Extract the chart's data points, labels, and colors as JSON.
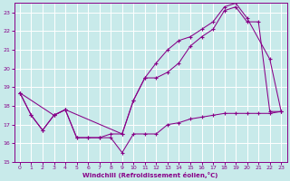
{
  "xlabel": "Windchill (Refroidissement éolien,°C)",
  "bg_color": "#c8eaea",
  "line_color": "#880088",
  "grid_color": "#ffffff",
  "xlim": [
    -0.5,
    23.5
  ],
  "ylim": [
    15,
    23.5
  ],
  "xticks": [
    0,
    1,
    2,
    3,
    4,
    5,
    6,
    7,
    8,
    9,
    10,
    11,
    12,
    13,
    14,
    15,
    16,
    17,
    18,
    19,
    20,
    21,
    22,
    23
  ],
  "yticks": [
    15,
    16,
    17,
    18,
    19,
    20,
    21,
    22,
    23
  ],
  "line1_x": [
    0,
    1,
    2,
    3,
    4,
    9,
    10,
    11,
    12,
    13,
    14,
    15,
    16,
    17,
    18,
    19,
    20,
    21,
    22,
    23
  ],
  "line1_y": [
    18.7,
    17.5,
    16.7,
    17.5,
    17.8,
    16.5,
    18.3,
    19.5,
    19.5,
    19.8,
    20.3,
    21.2,
    21.7,
    22.1,
    23.1,
    23.3,
    22.5,
    22.5,
    17.7,
    17.7
  ],
  "line2_x": [
    0,
    1,
    2,
    3,
    4,
    5,
    6,
    7,
    8,
    9,
    10,
    11,
    12,
    13,
    14,
    15,
    16,
    17,
    18,
    19,
    20,
    21,
    22,
    23
  ],
  "line2_y": [
    18.7,
    17.5,
    16.7,
    17.5,
    17.8,
    16.3,
    16.3,
    16.3,
    16.3,
    15.5,
    16.5,
    16.5,
    16.5,
    17.0,
    17.1,
    17.3,
    17.4,
    17.5,
    17.6,
    17.6,
    17.6,
    17.6,
    17.6,
    17.7
  ],
  "line3_x": [
    0,
    3,
    4,
    5,
    6,
    7,
    8,
    9,
    10,
    11,
    12,
    13,
    14,
    15,
    16,
    17,
    18,
    19,
    20,
    22,
    23
  ],
  "line3_y": [
    18.7,
    17.5,
    17.8,
    16.3,
    16.3,
    16.3,
    16.5,
    16.5,
    18.3,
    19.5,
    20.3,
    21.0,
    21.5,
    21.7,
    22.1,
    22.5,
    23.3,
    23.5,
    22.7,
    20.5,
    17.7
  ]
}
